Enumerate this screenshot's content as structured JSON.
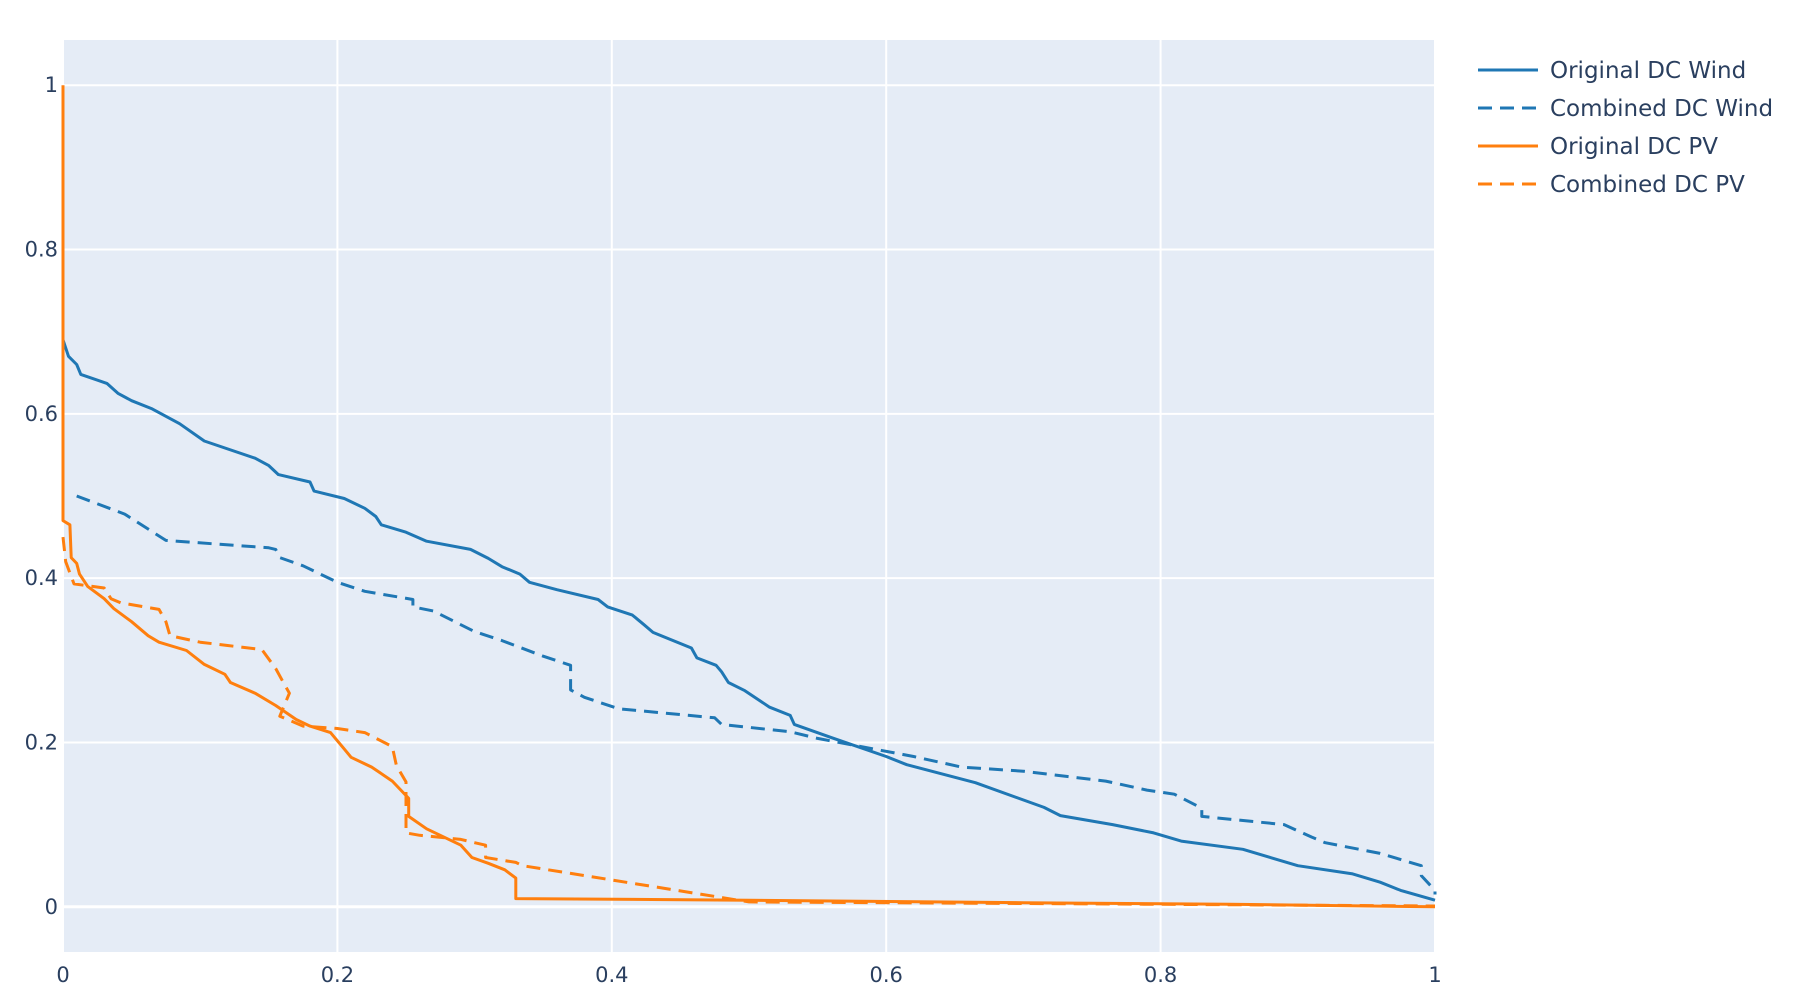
{
  "colors": {
    "plot_bg": "#E5ECF6",
    "grid": "#ffffff",
    "text": "#2a3f5f",
    "wind": "#1f77b4",
    "pv": "#ff7f0e"
  },
  "chart_data": {
    "type": "line",
    "title": "",
    "xlabel": "",
    "ylabel": "",
    "xlim": [
      0,
      1
    ],
    "ylim": [
      -0.055,
      1.055
    ],
    "grid": true,
    "legend_position": "top-right",
    "x_ticks": [
      "0",
      "0.2",
      "0.4",
      "0.6",
      "0.8",
      "1"
    ],
    "y_ticks": [
      "0",
      "0.2",
      "0.4",
      "0.6",
      "0.8",
      "1"
    ],
    "series": [
      {
        "name": "Original DC Wind",
        "color": "#1f77b4",
        "dash": "solid",
        "points": [
          [
            0,
            0.69
          ],
          [
            0.004,
            0.67
          ],
          [
            0.01,
            0.66
          ],
          [
            0.013,
            0.648
          ],
          [
            0.032,
            0.637
          ],
          [
            0.04,
            0.625
          ],
          [
            0.05,
            0.616
          ],
          [
            0.065,
            0.606
          ],
          [
            0.085,
            0.588
          ],
          [
            0.103,
            0.567
          ],
          [
            0.14,
            0.546
          ],
          [
            0.15,
            0.537
          ],
          [
            0.157,
            0.526
          ],
          [
            0.18,
            0.517
          ],
          [
            0.183,
            0.506
          ],
          [
            0.205,
            0.497
          ],
          [
            0.22,
            0.485
          ],
          [
            0.228,
            0.475
          ],
          [
            0.232,
            0.465
          ],
          [
            0.25,
            0.456
          ],
          [
            0.265,
            0.445
          ],
          [
            0.297,
            0.435
          ],
          [
            0.31,
            0.424
          ],
          [
            0.32,
            0.414
          ],
          [
            0.333,
            0.405
          ],
          [
            0.34,
            0.395
          ],
          [
            0.36,
            0.386
          ],
          [
            0.39,
            0.374
          ],
          [
            0.397,
            0.365
          ],
          [
            0.415,
            0.355
          ],
          [
            0.423,
            0.344
          ],
          [
            0.43,
            0.334
          ],
          [
            0.458,
            0.315
          ],
          [
            0.462,
            0.303
          ],
          [
            0.476,
            0.294
          ],
          [
            0.48,
            0.286
          ],
          [
            0.485,
            0.273
          ],
          [
            0.497,
            0.263
          ],
          [
            0.515,
            0.243
          ],
          [
            0.53,
            0.233
          ],
          [
            0.533,
            0.222
          ],
          [
            0.56,
            0.206
          ],
          [
            0.6,
            0.183
          ],
          [
            0.615,
            0.173
          ],
          [
            0.665,
            0.151
          ],
          [
            0.715,
            0.121
          ],
          [
            0.727,
            0.111
          ],
          [
            0.765,
            0.1
          ],
          [
            0.795,
            0.09
          ],
          [
            0.815,
            0.08
          ],
          [
            0.86,
            0.07
          ],
          [
            0.9,
            0.05
          ],
          [
            0.94,
            0.04
          ],
          [
            0.96,
            0.03
          ],
          [
            0.975,
            0.02
          ],
          [
            1,
            0.008
          ]
        ]
      },
      {
        "name": "Combined DC Wind",
        "color": "#1f77b4",
        "dash": "dashed",
        "points": [
          [
            0.01,
            0.5
          ],
          [
            0.045,
            0.478
          ],
          [
            0.075,
            0.446
          ],
          [
            0.15,
            0.437
          ],
          [
            0.155,
            0.435
          ],
          [
            0.158,
            0.425
          ],
          [
            0.175,
            0.415
          ],
          [
            0.2,
            0.395
          ],
          [
            0.22,
            0.384
          ],
          [
            0.255,
            0.374
          ],
          [
            0.255,
            0.365
          ],
          [
            0.27,
            0.36
          ],
          [
            0.3,
            0.335
          ],
          [
            0.32,
            0.324
          ],
          [
            0.35,
            0.305
          ],
          [
            0.37,
            0.294
          ],
          [
            0.37,
            0.264
          ],
          [
            0.38,
            0.255
          ],
          [
            0.405,
            0.241
          ],
          [
            0.475,
            0.23
          ],
          [
            0.48,
            0.222
          ],
          [
            0.53,
            0.213
          ],
          [
            0.55,
            0.205
          ],
          [
            0.62,
            0.183
          ],
          [
            0.655,
            0.17
          ],
          [
            0.7,
            0.165
          ],
          [
            0.76,
            0.153
          ],
          [
            0.79,
            0.142
          ],
          [
            0.81,
            0.137
          ],
          [
            0.83,
            0.12
          ],
          [
            0.83,
            0.11
          ],
          [
            0.89,
            0.1
          ],
          [
            0.91,
            0.085
          ],
          [
            0.92,
            0.078
          ],
          [
            0.96,
            0.065
          ],
          [
            0.99,
            0.05
          ],
          [
            0.99,
            0.038
          ],
          [
            1,
            0.02
          ],
          [
            1,
            0.015
          ]
        ]
      },
      {
        "name": "Original DC PV",
        "color": "#ff7f0e",
        "dash": "solid",
        "points": [
          [
            0,
            1.0
          ],
          [
            0,
            0.47
          ],
          [
            0.005,
            0.465
          ],
          [
            0.006,
            0.425
          ],
          [
            0.01,
            0.418
          ],
          [
            0.012,
            0.405
          ],
          [
            0.018,
            0.39
          ],
          [
            0.03,
            0.375
          ],
          [
            0.037,
            0.363
          ],
          [
            0.05,
            0.347
          ],
          [
            0.062,
            0.33
          ],
          [
            0.07,
            0.322
          ],
          [
            0.09,
            0.312
          ],
          [
            0.103,
            0.295
          ],
          [
            0.118,
            0.283
          ],
          [
            0.122,
            0.273
          ],
          [
            0.14,
            0.26
          ],
          [
            0.155,
            0.245
          ],
          [
            0.17,
            0.228
          ],
          [
            0.18,
            0.22
          ],
          [
            0.195,
            0.212
          ],
          [
            0.205,
            0.192
          ],
          [
            0.21,
            0.182
          ],
          [
            0.225,
            0.17
          ],
          [
            0.24,
            0.153
          ],
          [
            0.252,
            0.132
          ],
          [
            0.252,
            0.11
          ],
          [
            0.265,
            0.095
          ],
          [
            0.29,
            0.075
          ],
          [
            0.298,
            0.06
          ],
          [
            0.31,
            0.053
          ],
          [
            0.322,
            0.045
          ],
          [
            0.33,
            0.035
          ],
          [
            0.33,
            0.01
          ],
          [
            0.5,
            0.008
          ],
          [
            0.7,
            0.005
          ],
          [
            0.85,
            0.003
          ],
          [
            1,
            0
          ]
        ]
      },
      {
        "name": "Combined DC PV",
        "color": "#ff7f0e",
        "dash": "dashed",
        "points": [
          [
            0,
            0.45
          ],
          [
            0.002,
            0.42
          ],
          [
            0.008,
            0.393
          ],
          [
            0.03,
            0.388
          ],
          [
            0.035,
            0.375
          ],
          [
            0.042,
            0.37
          ],
          [
            0.07,
            0.362
          ],
          [
            0.075,
            0.347
          ],
          [
            0.078,
            0.33
          ],
          [
            0.1,
            0.322
          ],
          [
            0.12,
            0.318
          ],
          [
            0.145,
            0.313
          ],
          [
            0.155,
            0.29
          ],
          [
            0.16,
            0.275
          ],
          [
            0.165,
            0.26
          ],
          [
            0.158,
            0.232
          ],
          [
            0.175,
            0.22
          ],
          [
            0.2,
            0.217
          ],
          [
            0.22,
            0.212
          ],
          [
            0.24,
            0.195
          ],
          [
            0.243,
            0.172
          ],
          [
            0.25,
            0.152
          ],
          [
            0.25,
            0.09
          ],
          [
            0.26,
            0.087
          ],
          [
            0.29,
            0.082
          ],
          [
            0.3,
            0.078
          ],
          [
            0.308,
            0.075
          ],
          [
            0.308,
            0.06
          ],
          [
            0.33,
            0.054
          ],
          [
            0.335,
            0.05
          ],
          [
            0.5,
            0.006
          ],
          [
            0.8,
            0.003
          ],
          [
            1,
            0.001
          ]
        ]
      }
    ]
  }
}
